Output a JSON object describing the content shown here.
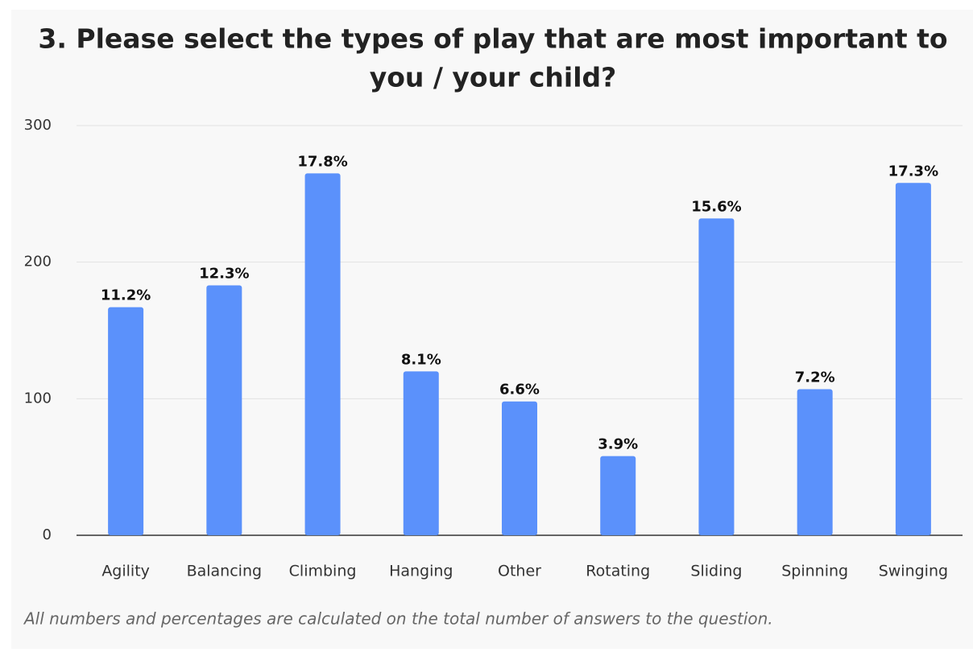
{
  "chart_data": {
    "type": "bar",
    "title": "3. Please select the types of play that are most important to",
    "title_line2": "you / your child?",
    "categories": [
      "Agility",
      "Balancing",
      "Climbing",
      "Hanging",
      "Other",
      "Rotating",
      "Sliding",
      "Spinning",
      "Swinging"
    ],
    "values": [
      167,
      183,
      265,
      120,
      98,
      58,
      232,
      107,
      258
    ],
    "percent_labels": [
      "11.2%",
      "12.3%",
      "17.8%",
      "8.1%",
      "6.6%",
      "3.9%",
      "15.6%",
      "7.2%",
      "17.3%"
    ],
    "color": "#5b91fb",
    "ylim": [
      0,
      300
    ],
    "yticks": [
      0,
      100,
      200,
      300
    ],
    "grid": true,
    "footnote": "All numbers and percentages are calculated on the total number of answers to the question."
  }
}
